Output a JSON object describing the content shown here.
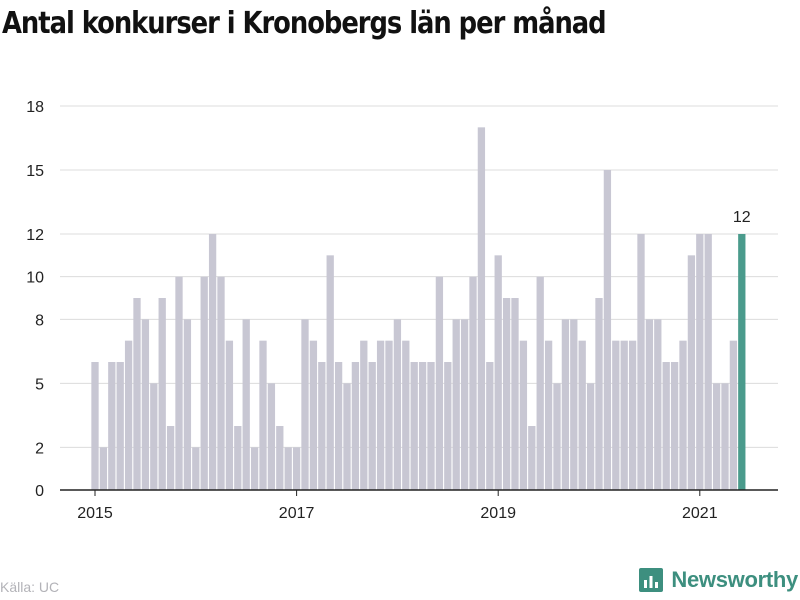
{
  "title": "Antal konkurser i Kronobergs län per månad",
  "source": "Källa: UC",
  "brand": {
    "name": "Newsworthy",
    "color": "#3d8f7f"
  },
  "colors": {
    "bar": "#c8c7d3",
    "highlight": "#4a9b8c",
    "grid": "#dcdcdc",
    "axis": "#222222"
  },
  "chart_data": {
    "type": "bar",
    "start": "2015-01",
    "ylim": [
      0,
      18
    ],
    "yticks": [
      0,
      2,
      5,
      8,
      10,
      12,
      15,
      18
    ],
    "xticks": [
      "2015",
      "2017",
      "2019",
      "2021"
    ],
    "values": [
      6,
      2,
      6,
      6,
      7,
      9,
      8,
      5,
      9,
      3,
      10,
      8,
      2,
      10,
      12,
      10,
      7,
      3,
      8,
      2,
      7,
      5,
      3,
      2,
      2,
      8,
      7,
      6,
      11,
      6,
      5,
      6,
      7,
      6,
      7,
      7,
      8,
      7,
      6,
      6,
      6,
      10,
      6,
      8,
      8,
      10,
      17,
      6,
      11,
      9,
      9,
      7,
      3,
      10,
      7,
      5,
      8,
      8,
      7,
      5,
      9,
      15,
      7,
      7,
      7,
      12,
      8,
      8,
      6,
      6,
      7,
      11,
      12,
      12,
      5,
      5,
      7,
      12
    ],
    "highlight_label": "12"
  }
}
